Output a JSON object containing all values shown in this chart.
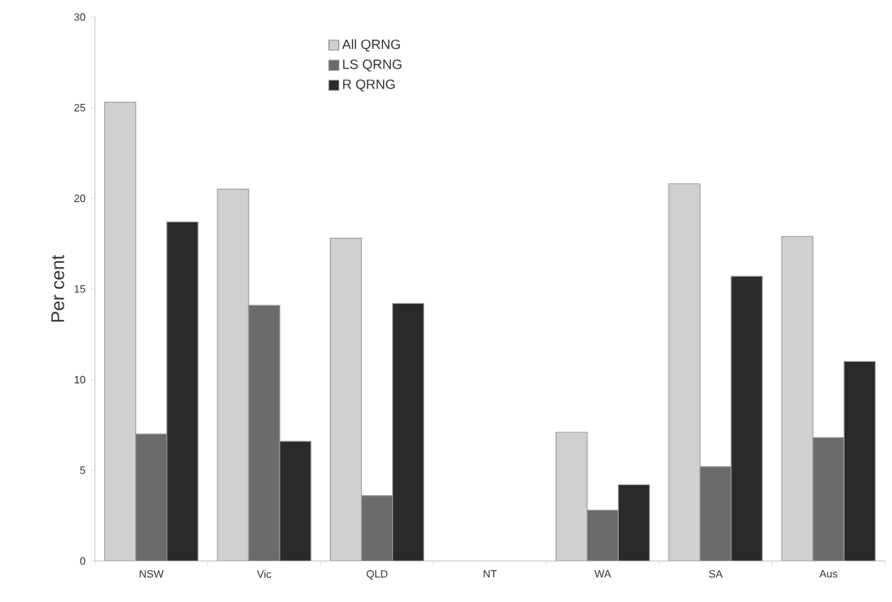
{
  "chart_data": {
    "type": "bar",
    "ylabel": "Per cent",
    "categories": [
      "NSW",
      "Vic",
      "QLD",
      "NT",
      "WA",
      "SA",
      "Aus"
    ],
    "series": [
      {
        "name": "All QRNG",
        "color": "#d0d0d0",
        "values": [
          25.3,
          20.5,
          17.8,
          null,
          7.1,
          20.8,
          17.9
        ]
      },
      {
        "name": "LS QRNG",
        "color": "#6b6b6b",
        "values": [
          7.0,
          14.1,
          3.6,
          null,
          2.8,
          5.2,
          6.8
        ]
      },
      {
        "name": "R QRNG",
        "color": "#2a2a2a",
        "values": [
          18.7,
          6.6,
          14.2,
          null,
          4.2,
          15.7,
          11.0
        ]
      }
    ],
    "ylim": [
      0,
      30
    ],
    "yticks": [
      0,
      5,
      10,
      15,
      20,
      25,
      30
    ],
    "grid": false,
    "legend": "top"
  }
}
